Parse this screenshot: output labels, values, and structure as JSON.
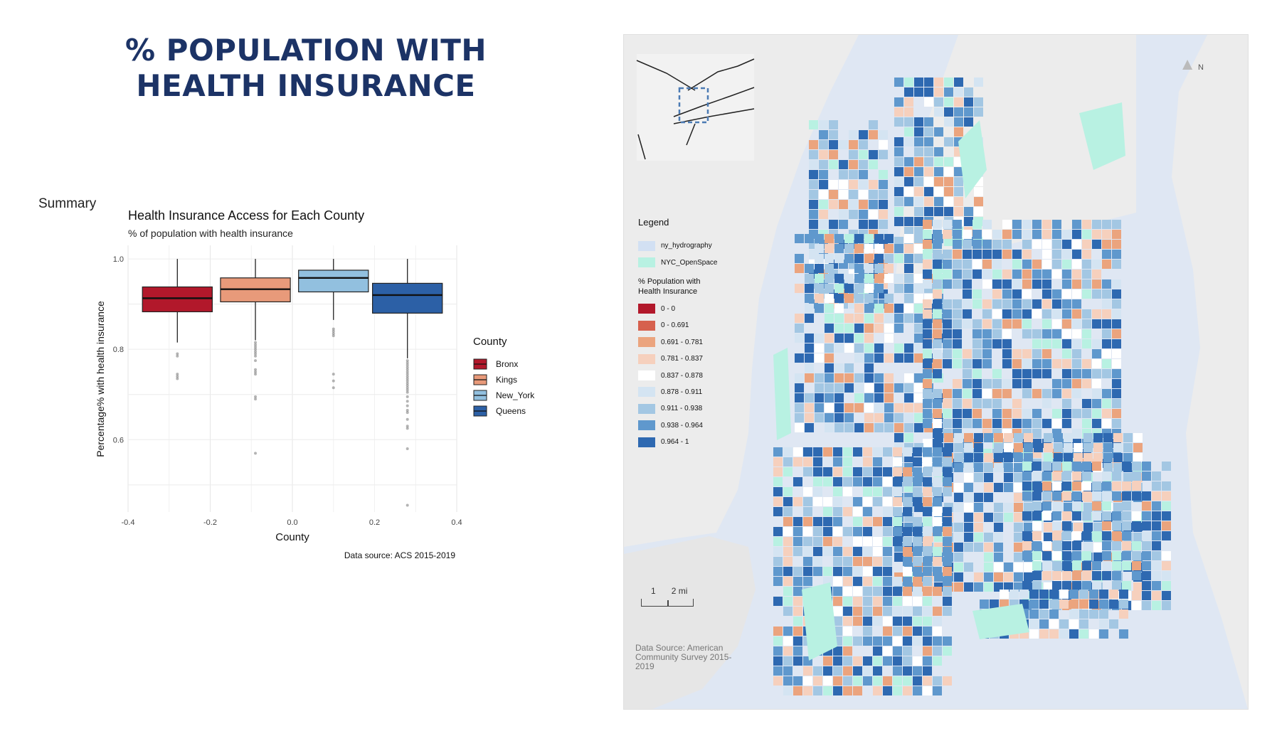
{
  "title_line1": "% POPULATION WITH",
  "title_line2": "HEALTH INSURANCE",
  "summary_label": "Summary",
  "colors": {
    "title": "#1c3366",
    "bronx": "#b2182b",
    "kings": "#e89a7a",
    "new_york": "#92c0df",
    "queens": "#2c60a6",
    "water": "#dfe7f3",
    "land": "#ececec",
    "openspace": "#b8f1e2"
  },
  "chart_data": {
    "type": "boxplot",
    "title": "Health Insurance Access for Each County",
    "subtitle": "% of population with health insurance",
    "xlabel": "County",
    "ylabel": "Percentage% with health insurance",
    "caption": "Data source: ACS 2015-2019",
    "xlim": [
      -0.4,
      0.4
    ],
    "ylim": [
      0.44,
      1.03
    ],
    "xticks": [
      "-0.4",
      "-0.2",
      "0.0",
      "0.2",
      "0.4"
    ],
    "xtick_values": [
      -0.4,
      -0.2,
      0.0,
      0.2,
      0.4
    ],
    "yticks": [
      "0.6",
      "0.8",
      "1.0"
    ],
    "ytick_values": [
      0.6,
      0.8,
      1.0
    ],
    "legend_title": "County",
    "series": [
      {
        "name": "Bronx",
        "color": "#b2182b",
        "x": -0.28,
        "q1": 0.883,
        "median": 0.913,
        "q3": 0.938,
        "whisker_low": 0.815,
        "whisker_high": 1.0,
        "outliers": [
          0.79,
          0.785,
          0.745,
          0.74,
          0.735
        ]
      },
      {
        "name": "Kings",
        "color": "#e89a7a",
        "x": -0.09,
        "q1": 0.905,
        "median": 0.933,
        "q3": 0.958,
        "whisker_low": 0.82,
        "whisker_high": 1.0,
        "outliers": [
          0.815,
          0.81,
          0.805,
          0.8,
          0.795,
          0.79,
          0.785,
          0.775,
          0.755,
          0.75,
          0.745,
          0.695,
          0.69,
          0.57
        ]
      },
      {
        "name": "New_York",
        "color": "#92c0df",
        "x": 0.1,
        "q1": 0.927,
        "median": 0.958,
        "q3": 0.975,
        "whisker_low": 0.865,
        "whisker_high": 1.0,
        "outliers": [
          0.845,
          0.84,
          0.835,
          0.83,
          0.745,
          0.73,
          0.715
        ]
      },
      {
        "name": "Queens",
        "color": "#2c60a6",
        "x": 0.28,
        "q1": 0.88,
        "median": 0.92,
        "q3": 0.946,
        "whisker_low": 0.78,
        "whisker_high": 1.0,
        "outliers": [
          0.775,
          0.77,
          0.765,
          0.76,
          0.755,
          0.75,
          0.745,
          0.74,
          0.735,
          0.73,
          0.725,
          0.72,
          0.715,
          0.71,
          0.705,
          0.695,
          0.685,
          0.675,
          0.665,
          0.66,
          0.645,
          0.63,
          0.625,
          0.58,
          0.455
        ]
      }
    ]
  },
  "map": {
    "legend_heading": "Legend",
    "hydro_label": "ny_hydrography",
    "openspace_label": "NYC_OpenSpace",
    "variable_title": "% Population with\nHealth Insurance",
    "classes": [
      {
        "label": "0 - 0",
        "color": "#b2182b"
      },
      {
        "label": "0 - 0.691",
        "color": "#d6604d"
      },
      {
        "label": "0.691 - 0.781",
        "color": "#eba47e"
      },
      {
        "label": "0.781 - 0.837",
        "color": "#f6d0bd"
      },
      {
        "label": "0.837 - 0.878",
        "color": "#ffffff"
      },
      {
        "label": "0.878 - 0.911",
        "color": "#d4e4f2"
      },
      {
        "label": "0.911 - 0.938",
        "color": "#a3c7e3"
      },
      {
        "label": "0.938 - 0.964",
        "color": "#5f98cd"
      },
      {
        "label": "0.964 - 1",
        "color": "#2e69b1"
      }
    ],
    "scale_labels": [
      "1",
      "2 mi"
    ],
    "north_label": "N",
    "source": "Data Source: American Community Survey 2015-2019"
  }
}
